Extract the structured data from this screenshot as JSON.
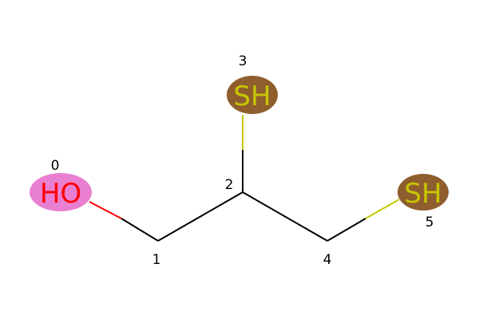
{
  "molecule": {
    "atoms": [
      {
        "index": "0",
        "symbol": "HO",
        "label_color": "#ff0000",
        "highlight_color": "#e97fd1"
      },
      {
        "index": "1",
        "symbol": "",
        "label_color": "#000000",
        "highlight_color": ""
      },
      {
        "index": "2",
        "symbol": "",
        "label_color": "#000000",
        "highlight_color": ""
      },
      {
        "index": "3",
        "symbol": "SH",
        "label_color": "#c6c600",
        "highlight_color": "#8f5e2e"
      },
      {
        "index": "4",
        "symbol": "",
        "label_color": "#000000",
        "highlight_color": ""
      },
      {
        "index": "5",
        "symbol": "SH",
        "label_color": "#c6c600",
        "highlight_color": "#8f5e2e"
      }
    ],
    "bonds": [
      {
        "from": 0,
        "to": 1,
        "order": 1
      },
      {
        "from": 1,
        "to": 2,
        "order": 1
      },
      {
        "from": 2,
        "to": 3,
        "order": 1
      },
      {
        "from": 2,
        "to": 4,
        "order": 1
      },
      {
        "from": 4,
        "to": 5,
        "order": 1
      }
    ],
    "colors": {
      "carbon": "#000000",
      "oxygen": "#ff0000",
      "sulfur": "#c6c600"
    }
  }
}
